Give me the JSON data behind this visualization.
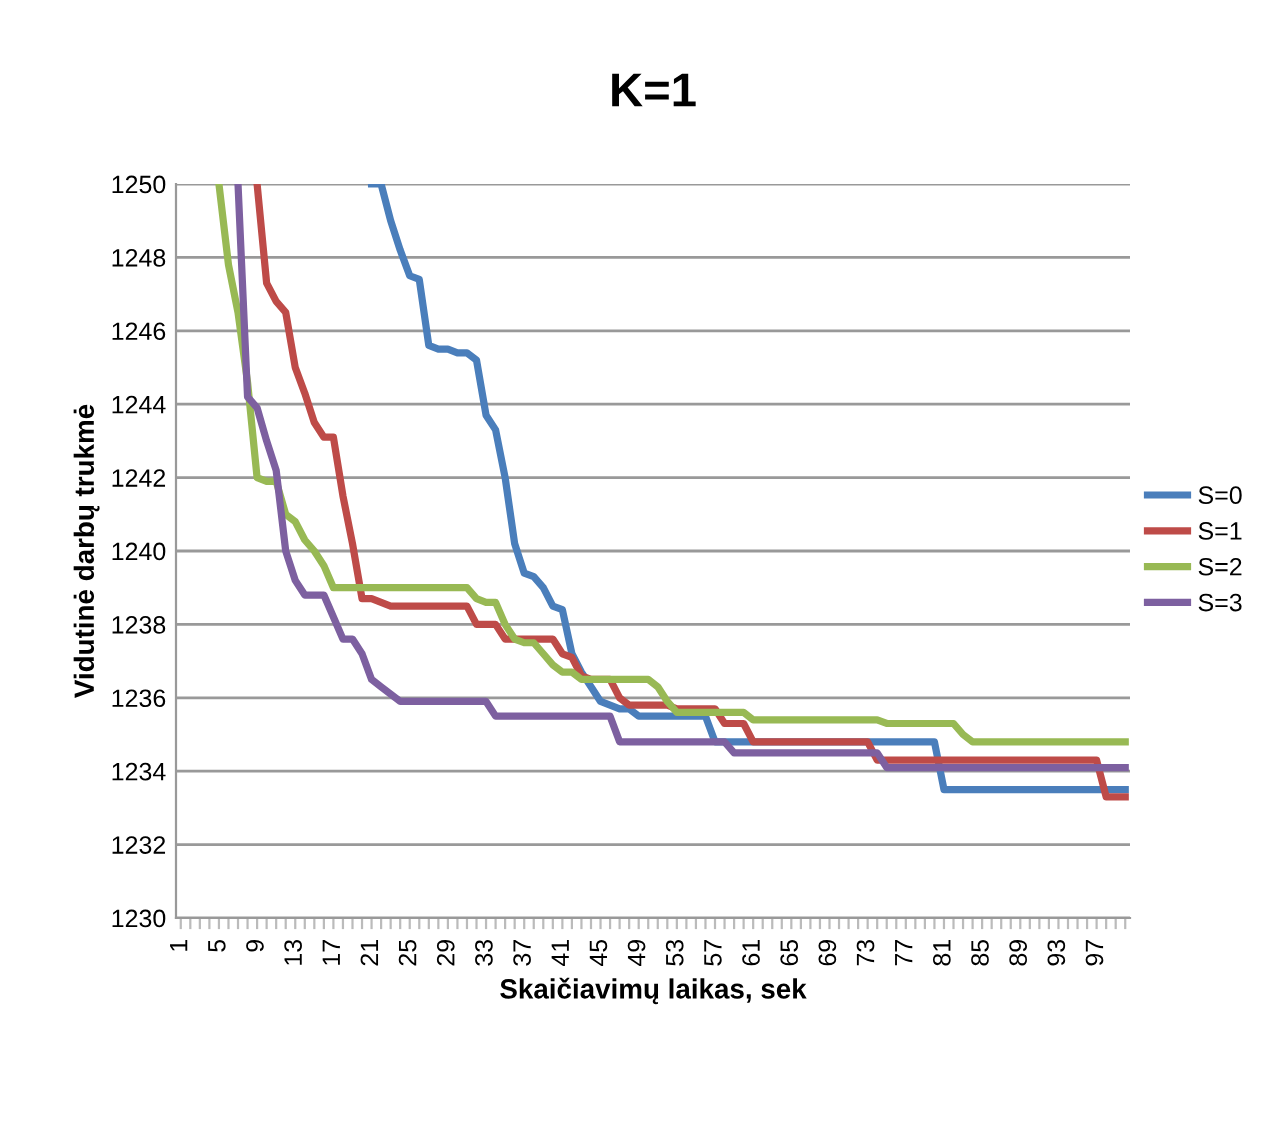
{
  "chart_data": {
    "type": "line",
    "title": "K=1",
    "xlabel": "Skaičiavimų laikas, sek",
    "ylabel": "Vidutinė darbų trukmė",
    "categories": [
      "1",
      null,
      null,
      null,
      "5",
      null,
      null,
      null,
      "9",
      null,
      null,
      null,
      "13",
      null,
      null,
      null,
      "17",
      null,
      null,
      null,
      "21",
      null,
      null,
      null,
      "25",
      null,
      null,
      null,
      "29",
      null,
      null,
      null,
      "33",
      null,
      null,
      null,
      "37",
      null,
      null,
      null,
      "41",
      null,
      null,
      null,
      "45",
      null,
      null,
      null,
      "49",
      null,
      null,
      null,
      "53",
      null,
      null,
      null,
      "57",
      null,
      null,
      null,
      "61",
      null,
      null,
      null,
      "65",
      null,
      null,
      null,
      "69",
      null,
      null,
      null,
      "73",
      null,
      null,
      null,
      "77",
      null,
      null,
      null,
      "81",
      null,
      null,
      null,
      "85",
      null,
      null,
      null,
      "89",
      null,
      null,
      null,
      "93",
      null,
      null,
      null,
      "97",
      null,
      null,
      null
    ],
    "series": [
      {
        "name": "S=0",
        "color": "#4a7ebb",
        "values": [
          null,
          null,
          null,
          null,
          null,
          null,
          null,
          null,
          null,
          null,
          null,
          null,
          null,
          null,
          null,
          null,
          null,
          null,
          null,
          null,
          1250,
          1250,
          1249,
          1248.2,
          1247.5,
          1247.4,
          1245.6,
          1245.5,
          1245.5,
          1245.4,
          1245.4,
          1245.2,
          1243.7,
          1243.3,
          1242,
          1240.2,
          1239.4,
          1239.3,
          1239,
          1238.5,
          1238.4,
          1237.2,
          1236.7,
          1236.3,
          1235.9,
          1235.8,
          1235.7,
          1235.7,
          1235.5,
          1235.5,
          1235.5,
          1235.5,
          1235.5,
          1235.5,
          1235.5,
          1235.5,
          1234.8,
          1234.8,
          1234.8,
          1234.8,
          1234.8,
          1234.8,
          1234.8,
          1234.8,
          1234.8,
          1234.8,
          1234.8,
          1234.8,
          1234.8,
          1234.8,
          1234.8,
          1234.8,
          1234.8,
          1234.8,
          1234.8,
          1234.8,
          1234.8,
          1234.8,
          1234.8,
          1234.8,
          1233.5,
          1233.5,
          1233.5,
          1233.5,
          1233.5,
          1233.5,
          1233.5,
          1233.5,
          1233.5,
          1233.5,
          1233.5,
          1233.5,
          1233.5,
          1233.5,
          1233.5,
          1233.5,
          1233.5,
          1233.5,
          1233.5,
          1233.5
        ]
      },
      {
        "name": "S=1",
        "color": "#be4b48",
        "values": [
          null,
          null,
          null,
          null,
          null,
          null,
          null,
          null,
          1250,
          1247.3,
          1246.8,
          1246.5,
          1245,
          1244.3,
          1243.5,
          1243.1,
          1243.1,
          1241.5,
          1240.2,
          1238.7,
          1238.7,
          1238.6,
          1238.5,
          1238.5,
          1238.5,
          1238.5,
          1238.5,
          1238.5,
          1238.5,
          1238.5,
          1238.5,
          1238,
          1238,
          1238,
          1237.6,
          1237.6,
          1237.6,
          1237.6,
          1237.6,
          1237.6,
          1237.2,
          1237.1,
          1236.6,
          1236.5,
          1236.5,
          1236.5,
          1236,
          1235.8,
          1235.8,
          1235.8,
          1235.8,
          1235.8,
          1235.7,
          1235.7,
          1235.7,
          1235.7,
          1235.7,
          1235.3,
          1235.3,
          1235.3,
          1234.8,
          1234.8,
          1234.8,
          1234.8,
          1234.8,
          1234.8,
          1234.8,
          1234.8,
          1234.8,
          1234.8,
          1234.8,
          1234.8,
          1234.8,
          1234.3,
          1234.3,
          1234.3,
          1234.3,
          1234.3,
          1234.3,
          1234.3,
          1234.3,
          1234.3,
          1234.3,
          1234.3,
          1234.3,
          1234.3,
          1234.3,
          1234.3,
          1234.3,
          1234.3,
          1234.3,
          1234.3,
          1234.3,
          1234.3,
          1234.3,
          1234.3,
          1234.3,
          1233.3,
          1233.3,
          1233.3
        ]
      },
      {
        "name": "S=2",
        "color": "#98b954",
        "values": [
          null,
          null,
          null,
          null,
          1250,
          1247.8,
          1246.5,
          1244.6,
          1242,
          1241.9,
          1241.9,
          1241,
          1240.8,
          1240.3,
          1240,
          1239.6,
          1239,
          1239,
          1239,
          1239,
          1239,
          1239,
          1239,
          1239,
          1239,
          1239,
          1239,
          1239,
          1239,
          1239,
          1239,
          1238.7,
          1238.6,
          1238.6,
          1238,
          1237.6,
          1237.5,
          1237.5,
          1237.2,
          1236.9,
          1236.7,
          1236.7,
          1236.5,
          1236.5,
          1236.5,
          1236.5,
          1236.5,
          1236.5,
          1236.5,
          1236.5,
          1236.3,
          1235.9,
          1235.6,
          1235.6,
          1235.6,
          1235.6,
          1235.6,
          1235.6,
          1235.6,
          1235.6,
          1235.4,
          1235.4,
          1235.4,
          1235.4,
          1235.4,
          1235.4,
          1235.4,
          1235.4,
          1235.4,
          1235.4,
          1235.4,
          1235.4,
          1235.4,
          1235.4,
          1235.3,
          1235.3,
          1235.3,
          1235.3,
          1235.3,
          1235.3,
          1235.3,
          1235.3,
          1235,
          1234.8,
          1234.8,
          1234.8,
          1234.8,
          1234.8,
          1234.8,
          1234.8,
          1234.8,
          1234.8,
          1234.8,
          1234.8,
          1234.8,
          1234.8,
          1234.8,
          1234.8,
          1234.8,
          1234.8
        ]
      },
      {
        "name": "S=3",
        "color": "#7d60a0",
        "values": [
          null,
          null,
          null,
          null,
          null,
          null,
          1250,
          1244.2,
          1243.9,
          1243,
          1242.2,
          1240,
          1239.2,
          1238.8,
          1238.8,
          1238.8,
          1238.2,
          1237.6,
          1237.6,
          1237.2,
          1236.5,
          1236.3,
          1236.1,
          1235.9,
          1235.9,
          1235.9,
          1235.9,
          1235.9,
          1235.9,
          1235.9,
          1235.9,
          1235.9,
          1235.9,
          1235.5,
          1235.5,
          1235.5,
          1235.5,
          1235.5,
          1235.5,
          1235.5,
          1235.5,
          1235.5,
          1235.5,
          1235.5,
          1235.5,
          1235.5,
          1234.8,
          1234.8,
          1234.8,
          1234.8,
          1234.8,
          1234.8,
          1234.8,
          1234.8,
          1234.8,
          1234.8,
          1234.8,
          1234.8,
          1234.5,
          1234.5,
          1234.5,
          1234.5,
          1234.5,
          1234.5,
          1234.5,
          1234.5,
          1234.5,
          1234.5,
          1234.5,
          1234.5,
          1234.5,
          1234.5,
          1234.5,
          1234.5,
          1234.1,
          1234.1,
          1234.1,
          1234.1,
          1234.1,
          1234.1,
          1234.1,
          1234.1,
          1234.1,
          1234.1,
          1234.1,
          1234.1,
          1234.1,
          1234.1,
          1234.1,
          1234.1,
          1234.1,
          1234.1,
          1234.1,
          1234.1,
          1234.1,
          1234.1,
          1234.1,
          1234.1,
          1234.1,
          1234.1
        ]
      }
    ],
    "ylim": [
      1230,
      1250
    ],
    "yticks": [
      1230,
      1232,
      1234,
      1236,
      1238,
      1240,
      1242,
      1244,
      1246,
      1248,
      1250
    ],
    "grid": "y",
    "legend": "right",
    "marker": "none",
    "line_style": "solid"
  }
}
